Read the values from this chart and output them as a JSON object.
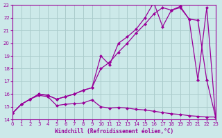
{
  "bg_color": "#cce9e9",
  "grid_color": "#aacccc",
  "line_color": "#990099",
  "xlim": [
    0,
    23
  ],
  "ylim": [
    14,
    23
  ],
  "xtick_vals": [
    0,
    1,
    2,
    3,
    4,
    5,
    6,
    7,
    8,
    9,
    10,
    11,
    12,
    13,
    14,
    15,
    16,
    17,
    18,
    19,
    20,
    21,
    22,
    23
  ],
  "ytick_vals": [
    14,
    15,
    16,
    17,
    18,
    19,
    20,
    21,
    22,
    23
  ],
  "xlabel": "Windchill (Refroidissement éolien,°C)",
  "line1_x": [
    0,
    1,
    2,
    3,
    4,
    5,
    6,
    7,
    8,
    9,
    10,
    11,
    12,
    13,
    14,
    15,
    16,
    17,
    18,
    19,
    20,
    21,
    22,
    23
  ],
  "line1_y": [
    14.5,
    15.2,
    15.6,
    15.9,
    15.8,
    15.1,
    15.2,
    15.25,
    15.3,
    15.55,
    15.0,
    14.9,
    14.95,
    14.9,
    14.8,
    14.75,
    14.65,
    14.55,
    14.45,
    14.4,
    14.3,
    14.25,
    14.2,
    14.2
  ],
  "line2_x": [
    0,
    1,
    2,
    3,
    4,
    5,
    6,
    7,
    8,
    9,
    10,
    11,
    12,
    13,
    14,
    15,
    16,
    17,
    18,
    19,
    20,
    21,
    22,
    23
  ],
  "line2_y": [
    14.5,
    15.2,
    15.6,
    16.0,
    15.9,
    15.6,
    15.8,
    16.0,
    16.3,
    16.5,
    18.0,
    18.5,
    19.3,
    20.0,
    20.8,
    21.5,
    22.3,
    22.8,
    22.6,
    22.8,
    21.9,
    21.8,
    17.1,
    14.2
  ],
  "line3_x": [
    0,
    1,
    2,
    3,
    4,
    5,
    6,
    7,
    8,
    9,
    10,
    11,
    12,
    13,
    14,
    15,
    16,
    17,
    18,
    19,
    20,
    21,
    22,
    23
  ],
  "line3_y": [
    14.5,
    15.2,
    15.6,
    16.0,
    15.9,
    15.6,
    15.8,
    16.0,
    16.3,
    16.5,
    19.0,
    18.3,
    20.0,
    20.5,
    21.1,
    22.0,
    23.2,
    21.3,
    22.6,
    22.9,
    21.9,
    17.1,
    22.8,
    14.2
  ]
}
